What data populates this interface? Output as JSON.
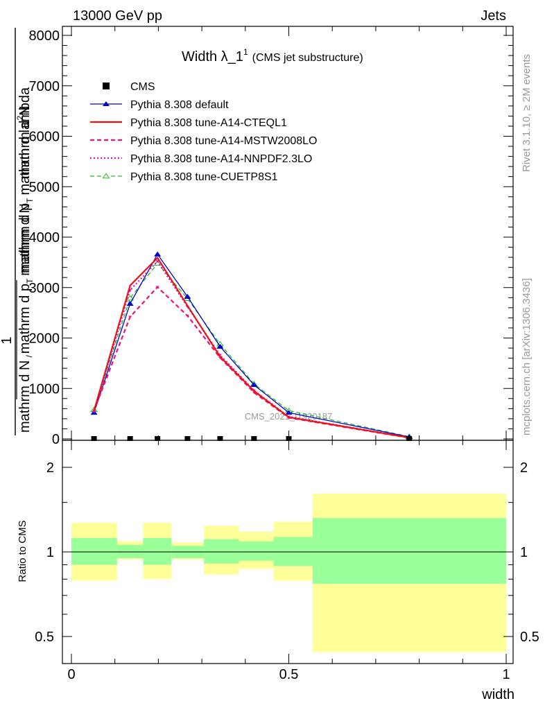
{
  "header": {
    "left": "13000 GeV pp",
    "right": "Jets"
  },
  "plot_title": {
    "main": "Width λ_1",
    "sup": "1",
    "sub": "(CMS jet substructure)"
  },
  "side_labels": {
    "rivet": "Rivet 3.1.10, ≥ 2M events",
    "mcplots": "mcplots.cern.ch [arXiv:1306.3436]"
  },
  "watermark": "CMS_2021_I1920187",
  "axes": {
    "ylabel_upper": {
      "one": "1",
      "left_a": "mathrm d N",
      "left_b": "mathrm d p",
      "left_sub": "T",
      "left_c": "mathrm d N",
      "right_a": "mathrm d",
      "right_sup": "2",
      "right_b": "N",
      "right_c": "mathrm d p",
      "right_sub": "T",
      "right_d": "mathrm d lambda"
    },
    "ylabel_lower": "Ratio to CMS",
    "xlabel": "width",
    "upper_yticks": [
      "0",
      "1000",
      "2000",
      "3000",
      "4000",
      "5000",
      "6000",
      "7000",
      "8000"
    ],
    "upper_ytick_values": [
      0,
      1000,
      2000,
      3000,
      4000,
      5000,
      6000,
      7000,
      8000
    ],
    "lower_yticks": [
      "0.5",
      "1",
      "2"
    ],
    "lower_ytick_values": [
      0.5,
      1,
      2
    ],
    "xticks": [
      "0",
      "0.5",
      "1"
    ],
    "xtick_values": [
      0,
      0.5,
      1
    ]
  },
  "legend": [
    {
      "label": "CMS",
      "color": "#000000"
    },
    {
      "label": "Pythia 8.308 default",
      "color": "#0000cc"
    },
    {
      "label": "Pythia 8.308 tune-A14-CTEQL1",
      "color": "#ee1111"
    },
    {
      "label": "Pythia 8.308 tune-A14-MSTW2008LO",
      "color": "#ee1177"
    },
    {
      "label": "Pythia 8.308 tune-A14-NNPDF2.3LO",
      "color": "#dd11cc"
    },
    {
      "label": "Pythia 8.308 tune-CUETP8S1",
      "color": "#22bb22"
    }
  ],
  "chart_data": {
    "type": "line",
    "xlim": [
      -0.02,
      1.0
    ],
    "ylim": [
      0,
      8200
    ],
    "ratio_ylim": [
      0.4,
      2.35
    ],
    "log_ratio": true,
    "bins": [
      [
        0.0,
        0.105
      ],
      [
        0.105,
        0.165
      ],
      [
        0.165,
        0.23
      ],
      [
        0.23,
        0.305
      ],
      [
        0.305,
        0.385
      ],
      [
        0.385,
        0.465
      ],
      [
        0.465,
        0.555
      ],
      [
        0.555,
        1.0
      ]
    ],
    "x": [
      0.052,
      0.135,
      0.198,
      0.267,
      0.342,
      0.42,
      0.5,
      0.777
    ],
    "cms_values": [
      0,
      0,
      0,
      0,
      0,
      0,
      0,
      0
    ],
    "band_inner": [
      [
        0.9,
        1.12
      ],
      [
        0.95,
        1.06
      ],
      [
        0.9,
        1.12
      ],
      [
        0.95,
        1.05
      ],
      [
        0.91,
        1.11
      ],
      [
        0.93,
        1.09
      ],
      [
        0.89,
        1.13
      ],
      [
        0.77,
        1.32
      ]
    ],
    "band_outer": [
      [
        0.79,
        1.27
      ],
      [
        0.94,
        1.09
      ],
      [
        0.8,
        1.27
      ],
      [
        0.94,
        1.08
      ],
      [
        0.83,
        1.24
      ],
      [
        0.87,
        1.18
      ],
      [
        0.79,
        1.28
      ],
      [
        0.44,
        1.61
      ]
    ],
    "series": [
      {
        "name": "Pythia 8.308 default",
        "values": [
          520,
          2680,
          3660,
          2820,
          1830,
          1070,
          520,
          40
        ]
      },
      {
        "name": "Pythia 8.308 tune-A14-CTEQL1",
        "values": [
          560,
          3040,
          3590,
          2640,
          1630,
          950,
          430,
          25
        ]
      },
      {
        "name": "Pythia 8.308 tune-A14-MSTW2008LO",
        "values": [
          560,
          2420,
          3010,
          2440,
          1610,
          920,
          420,
          20
        ]
      },
      {
        "name": "Pythia 8.308 tune-A14-NNPDF2.3LO",
        "values": [
          540,
          2950,
          3520,
          2620,
          1660,
          960,
          440,
          25
        ]
      },
      {
        "name": "Pythia 8.308 tune-CUETP8S1",
        "values": [
          580,
          2790,
          3480,
          2780,
          1880,
          1090,
          560,
          45
        ]
      }
    ]
  }
}
